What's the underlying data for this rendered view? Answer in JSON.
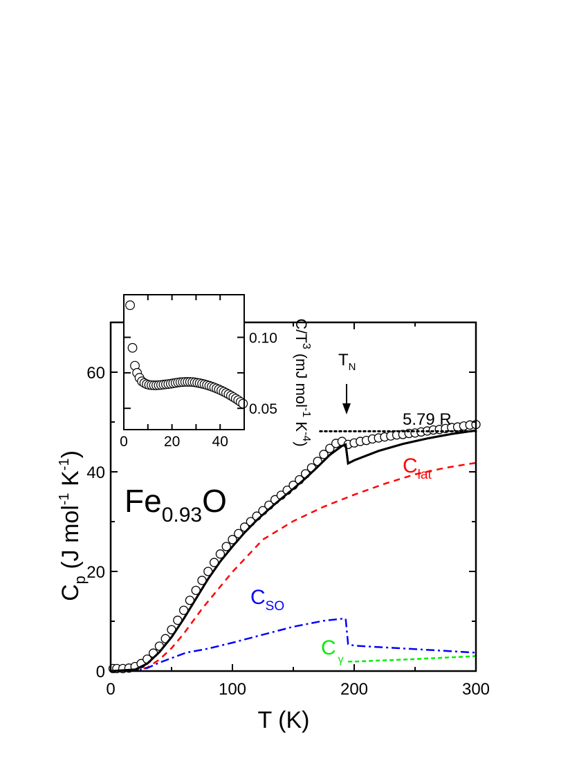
{
  "chart_data": [
    {
      "type": "line",
      "xlabel": "T (K)",
      "xlabel_parts": {
        "main": "T (K)"
      },
      "ylabel_parts": {
        "c": "C",
        "sub": "p",
        "a": " (J mol",
        "e1": "-1",
        "b": " K",
        "e2": "-1",
        "c2": ")"
      },
      "xlim": [
        0,
        300
      ],
      "ylim": [
        0,
        70
      ],
      "x_ticks": [
        0,
        100,
        200,
        300
      ],
      "y_ticks": [
        0,
        20,
        40,
        60
      ],
      "grid": false,
      "sample_label": {
        "main": "Fe",
        "sub": "0.93",
        "tail": "O"
      },
      "annotations": {
        "tn": {
          "main": "T",
          "sub": "N"
        },
        "plateau": "5.79 R",
        "plateau_value": 48.14,
        "tn_temperature": 195
      },
      "series": [
        {
          "kind": "markers",
          "marker": "open-circle",
          "color": "#000000",
          "x": [
            2,
            5,
            10,
            15,
            20,
            25,
            30,
            35,
            40,
            45,
            50,
            55,
            60,
            65,
            70,
            75,
            80,
            85,
            90,
            95,
            100,
            105,
            110,
            115,
            120,
            125,
            130,
            135,
            140,
            145,
            150,
            155,
            160,
            165,
            170,
            175,
            180,
            185,
            190,
            195,
            200,
            205,
            210,
            215,
            220,
            225,
            230,
            235,
            240,
            245,
            250,
            255,
            260,
            265,
            270,
            275,
            280,
            285,
            290,
            295,
            300
          ],
          "y": [
            0.5,
            0.5,
            0.5,
            0.6,
            0.9,
            1.5,
            2.4,
            3.6,
            5.0,
            6.5,
            8.3,
            10.2,
            12.2,
            14.2,
            16.2,
            18.2,
            20.0,
            21.8,
            23.5,
            25.0,
            26.4,
            27.6,
            28.9,
            30.0,
            31.1,
            32.2,
            33.3,
            34.4,
            35.3,
            36.3,
            37.3,
            38.4,
            39.6,
            40.8,
            42.1,
            43.5,
            44.7,
            45.7,
            46.1,
            45.5,
            45.8,
            46.1,
            46.3,
            46.6,
            46.8,
            47.0,
            47.2,
            47.4,
            47.5,
            47.7,
            47.8,
            48.0,
            48.2,
            48.4,
            48.5,
            48.7,
            48.9,
            49.0,
            49.2,
            49.4,
            49.5
          ]
        },
        {
          "kind": "line",
          "style": "solid",
          "color": "#000000",
          "x": [
            0,
            20,
            30,
            40,
            50,
            60,
            70,
            80,
            90,
            100,
            110,
            120,
            130,
            140,
            150,
            160,
            170,
            180,
            190,
            193,
            195,
            200,
            220,
            240,
            260,
            280,
            300
          ],
          "y": [
            0,
            0.3,
            1.5,
            3.8,
            6.8,
            10.5,
            14.5,
            18.5,
            22,
            25,
            27.8,
            30.3,
            32.5,
            34.6,
            36.6,
            38.7,
            41,
            43.4,
            45.2,
            45.5,
            41.7,
            42.3,
            44.2,
            45.6,
            46.7,
            47.6,
            48.3
          ]
        },
        {
          "kind": "line",
          "style": "dashed",
          "color": "#ff0000",
          "label": {
            "main": "C",
            "sub": "lat"
          },
          "x": [
            0,
            20,
            30,
            40,
            50,
            60,
            75,
            100,
            125,
            150,
            175,
            200,
            225,
            250,
            275,
            300
          ],
          "y": [
            0,
            0.1,
            0.7,
            2.3,
            4.6,
            7.5,
            12.5,
            19.9,
            26.4,
            30.1,
            33,
            35.4,
            37.6,
            39.5,
            40.8,
            41.8
          ]
        },
        {
          "kind": "line",
          "style": "dash-dot",
          "color": "#0000ff",
          "label": {
            "main": "C",
            "sub": "SO"
          },
          "x": [
            0,
            20,
            30,
            40,
            50,
            62,
            80,
            100,
            125,
            150,
            175,
            190,
            193,
            195,
            200,
            250,
            300
          ],
          "y": [
            0,
            0.1,
            0.6,
            1.7,
            2.6,
            3.7,
            4.5,
            5.7,
            7.3,
            8.9,
            10.1,
            10.5,
            10.5,
            5.4,
            5.1,
            4.4,
            3.7
          ]
        },
        {
          "kind": "line",
          "style": "short-dash",
          "color": "#00ee00",
          "label": {
            "main": "C",
            "sub": "γ"
          },
          "x": [
            195,
            200,
            250,
            300
          ],
          "y": [
            1.9,
            1.9,
            2.4,
            3.0
          ]
        }
      ]
    },
    {
      "type": "scatter",
      "inset": true,
      "xlim": [
        0,
        50
      ],
      "ylim": [
        0.035,
        0.13
      ],
      "x_ticks": [
        0,
        20,
        40
      ],
      "y_ticks": [
        "0.05",
        "0.10"
      ],
      "y_tick_values": [
        0.05,
        0.1
      ],
      "ylabel_parts": {
        "a": "C/T",
        "e0": "3",
        "b": " (mJ mol",
        "e1": "-1",
        "c": " K",
        "e2": "-4",
        "d": ")"
      },
      "series": [
        {
          "marker": "open-circle",
          "color": "#000000",
          "x": [
            2.6,
            3.6,
            4.6,
            5.5,
            6.5,
            7.5,
            8.5,
            9.5,
            10.5,
            11.5,
            12.5,
            13.5,
            14.5,
            15.5,
            16.5,
            17.5,
            18.5,
            19.5,
            20.5,
            21.5,
            22.5,
            23.5,
            24.5,
            25.5,
            26.5,
            27.5,
            28.5,
            29.5,
            30.5,
            31.5,
            32.5,
            33.5,
            34.5,
            35.5,
            36.5,
            37.5,
            38.5,
            39.5,
            40.5,
            41.5,
            42.5,
            43.5,
            44.5,
            45.5,
            46.5,
            47.5,
            48.5,
            49.5
          ],
          "y": [
            0.1226,
            0.0926,
            0.08,
            0.075,
            0.0715,
            0.069,
            0.0678,
            0.067,
            0.0665,
            0.0663,
            0.0662,
            0.0662,
            0.0663,
            0.0665,
            0.0667,
            0.0669,
            0.0671,
            0.0673,
            0.0676,
            0.0679,
            0.0682,
            0.0684,
            0.0685,
            0.0686,
            0.0686,
            0.0686,
            0.0685,
            0.0683,
            0.068,
            0.0677,
            0.0673,
            0.0669,
            0.0664,
            0.0659,
            0.0653,
            0.0647,
            0.064,
            0.0633,
            0.0625,
            0.0617,
            0.0608,
            0.0599,
            0.0589,
            0.0579,
            0.0568,
            0.0557,
            0.0545,
            0.0533
          ]
        }
      ]
    }
  ]
}
